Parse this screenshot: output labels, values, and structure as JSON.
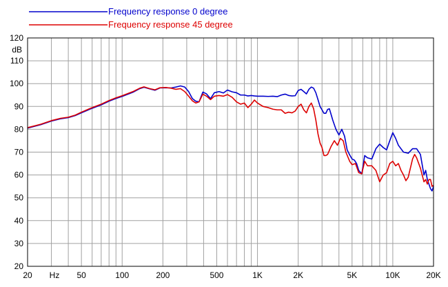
{
  "chart_data": {
    "type": "line",
    "x_scale": "log",
    "xlim": [
      20,
      20000
    ],
    "ylim": [
      20,
      120
    ],
    "grid": true,
    "ylabel": "dB",
    "xlabel": "",
    "legend_position": "top-left",
    "x_ticks": [
      {
        "value": 20,
        "label": "20"
      },
      {
        "value": 50,
        "label": "50"
      },
      {
        "value": 100,
        "label": "100"
      },
      {
        "value": 200,
        "label": "200"
      },
      {
        "value": 500,
        "label": "500"
      },
      {
        "value": 1000,
        "label": "1K"
      },
      {
        "value": 2000,
        "label": "2K"
      },
      {
        "value": 5000,
        "label": "5K"
      },
      {
        "value": 10000,
        "label": "10K"
      },
      {
        "value": 20000,
        "label": "20K"
      }
    ],
    "x_unit_label": "Hz",
    "y_ticks": [
      {
        "value": 20,
        "label": "20"
      },
      {
        "value": 30,
        "label": "30"
      },
      {
        "value": 40,
        "label": "40"
      },
      {
        "value": 50,
        "label": "50"
      },
      {
        "value": 60,
        "label": "60"
      },
      {
        "value": 70,
        "label": "70"
      },
      {
        "value": 80,
        "label": "80"
      },
      {
        "value": 90,
        "label": "90"
      },
      {
        "value": 100,
        "label": "100"
      },
      {
        "value": 110,
        "label": "110"
      },
      {
        "value": 120,
        "label": "120"
      }
    ],
    "series": [
      {
        "name": "Frequency response 0 degree",
        "color": "#0000cc",
        "points": [
          [
            20,
            80.5
          ],
          [
            25,
            82
          ],
          [
            30,
            83.6
          ],
          [
            35,
            84.6
          ],
          [
            40,
            85.1
          ],
          [
            45,
            86
          ],
          [
            50,
            87.2
          ],
          [
            60,
            89.2
          ],
          [
            70,
            90.7
          ],
          [
            80,
            92.3
          ],
          [
            90,
            93.5
          ],
          [
            100,
            94.4
          ],
          [
            120,
            96.2
          ],
          [
            135,
            97.8
          ],
          [
            145,
            98.4
          ],
          [
            160,
            97.7
          ],
          [
            175,
            97.1
          ],
          [
            190,
            98.1
          ],
          [
            210,
            98.2
          ],
          [
            230,
            98.1
          ],
          [
            250,
            98.5
          ],
          [
            270,
            99
          ],
          [
            290,
            98.5
          ],
          [
            310,
            96.5
          ],
          [
            330,
            93.5
          ],
          [
            350,
            92.3
          ],
          [
            370,
            92
          ],
          [
            395,
            96.3
          ],
          [
            420,
            95.5
          ],
          [
            450,
            93.4
          ],
          [
            480,
            96
          ],
          [
            520,
            96.5
          ],
          [
            560,
            95.9
          ],
          [
            600,
            97.2
          ],
          [
            650,
            96.4
          ],
          [
            700,
            96
          ],
          [
            750,
            95
          ],
          [
            800,
            95
          ],
          [
            850,
            94.6
          ],
          [
            900,
            94.8
          ],
          [
            950,
            94.6
          ],
          [
            1000,
            94.5
          ],
          [
            1100,
            94.5
          ],
          [
            1200,
            94.4
          ],
          [
            1300,
            94.5
          ],
          [
            1400,
            94.3
          ],
          [
            1500,
            95
          ],
          [
            1600,
            95.4
          ],
          [
            1700,
            94.8
          ],
          [
            1800,
            94.6
          ],
          [
            1900,
            94.7
          ],
          [
            2000,
            97
          ],
          [
            2100,
            97.5
          ],
          [
            2200,
            96.5
          ],
          [
            2300,
            95.5
          ],
          [
            2400,
            97.5
          ],
          [
            2500,
            98.5
          ],
          [
            2600,
            98
          ],
          [
            2700,
            96
          ],
          [
            2800,
            93
          ],
          [
            2900,
            90
          ],
          [
            3000,
            88.5
          ],
          [
            3100,
            87
          ],
          [
            3200,
            87
          ],
          [
            3300,
            88.7
          ],
          [
            3400,
            89
          ],
          [
            3500,
            86.5
          ],
          [
            3600,
            84
          ],
          [
            3800,
            80
          ],
          [
            4000,
            77.5
          ],
          [
            4200,
            80
          ],
          [
            4400,
            77
          ],
          [
            4600,
            71
          ],
          [
            4800,
            68.8
          ],
          [
            5000,
            67
          ],
          [
            5200,
            66.5
          ],
          [
            5400,
            65
          ],
          [
            5600,
            62
          ],
          [
            5900,
            60.5
          ],
          [
            6200,
            68.5
          ],
          [
            6500,
            67.5
          ],
          [
            7000,
            67
          ],
          [
            7500,
            71.5
          ],
          [
            8000,
            73.5
          ],
          [
            8500,
            72
          ],
          [
            9000,
            71
          ],
          [
            9500,
            75
          ],
          [
            10000,
            78.5
          ],
          [
            10500,
            76
          ],
          [
            11000,
            73
          ],
          [
            12000,
            70
          ],
          [
            13000,
            69.5
          ],
          [
            14000,
            71.5
          ],
          [
            15000,
            71.5
          ],
          [
            16000,
            69
          ],
          [
            17000,
            60
          ],
          [
            17500,
            62
          ],
          [
            18000,
            58
          ],
          [
            19000,
            54
          ],
          [
            19500,
            53
          ],
          [
            20000,
            55
          ]
        ]
      },
      {
        "name": "Frequency response 45 degree",
        "color": "#dd0000",
        "points": [
          [
            20,
            80.7
          ],
          [
            25,
            82.2
          ],
          [
            30,
            83.8
          ],
          [
            35,
            84.8
          ],
          [
            40,
            85.3
          ],
          [
            45,
            86.2
          ],
          [
            50,
            87.5
          ],
          [
            60,
            89.5
          ],
          [
            70,
            91
          ],
          [
            80,
            92.6
          ],
          [
            90,
            93.8
          ],
          [
            100,
            94.7
          ],
          [
            120,
            96.5
          ],
          [
            135,
            98
          ],
          [
            145,
            98.6
          ],
          [
            160,
            97.8
          ],
          [
            175,
            97.3
          ],
          [
            190,
            98.2
          ],
          [
            210,
            98.3
          ],
          [
            230,
            98
          ],
          [
            250,
            97.5
          ],
          [
            270,
            97.8
          ],
          [
            290,
            96.5
          ],
          [
            310,
            94.5
          ],
          [
            330,
            92.5
          ],
          [
            350,
            91.5
          ],
          [
            370,
            92
          ],
          [
            395,
            95.4
          ],
          [
            420,
            94.5
          ],
          [
            450,
            93
          ],
          [
            480,
            94.5
          ],
          [
            520,
            94.8
          ],
          [
            560,
            94.5
          ],
          [
            600,
            95.2
          ],
          [
            650,
            94
          ],
          [
            700,
            92
          ],
          [
            750,
            91
          ],
          [
            800,
            91.5
          ],
          [
            850,
            89.5
          ],
          [
            900,
            91
          ],
          [
            950,
            92.8
          ],
          [
            1000,
            91.5
          ],
          [
            1100,
            90
          ],
          [
            1200,
            89.5
          ],
          [
            1300,
            88.8
          ],
          [
            1400,
            88.5
          ],
          [
            1500,
            88.5
          ],
          [
            1600,
            87
          ],
          [
            1700,
            87.5
          ],
          [
            1800,
            87.2
          ],
          [
            1900,
            88
          ],
          [
            2000,
            90
          ],
          [
            2100,
            91
          ],
          [
            2200,
            88.5
          ],
          [
            2300,
            87.2
          ],
          [
            2400,
            90
          ],
          [
            2500,
            91.5
          ],
          [
            2600,
            89
          ],
          [
            2700,
            84
          ],
          [
            2800,
            78
          ],
          [
            2900,
            74
          ],
          [
            3000,
            72
          ],
          [
            3100,
            68.5
          ],
          [
            3200,
            68.5
          ],
          [
            3300,
            69
          ],
          [
            3500,
            72.5
          ],
          [
            3700,
            75
          ],
          [
            3900,
            73
          ],
          [
            4100,
            76
          ],
          [
            4300,
            75
          ],
          [
            4500,
            70
          ],
          [
            4800,
            66
          ],
          [
            5000,
            64.5
          ],
          [
            5300,
            65
          ],
          [
            5600,
            61
          ],
          [
            5900,
            60.5
          ],
          [
            6200,
            66
          ],
          [
            6500,
            64
          ],
          [
            7000,
            64
          ],
          [
            7500,
            62
          ],
          [
            8000,
            57
          ],
          [
            8500,
            60
          ],
          [
            9000,
            61
          ],
          [
            9500,
            65
          ],
          [
            10000,
            66
          ],
          [
            10500,
            64
          ],
          [
            11000,
            65
          ],
          [
            11500,
            62
          ],
          [
            12000,
            60
          ],
          [
            12500,
            57.5
          ],
          [
            13000,
            59
          ],
          [
            14000,
            67
          ],
          [
            14500,
            69
          ],
          [
            15000,
            67.5
          ],
          [
            16000,
            63
          ],
          [
            17000,
            57
          ],
          [
            17500,
            58
          ],
          [
            18000,
            56
          ],
          [
            18500,
            58
          ],
          [
            19000,
            58
          ],
          [
            19500,
            55
          ],
          [
            20000,
            55.5
          ]
        ]
      }
    ]
  }
}
